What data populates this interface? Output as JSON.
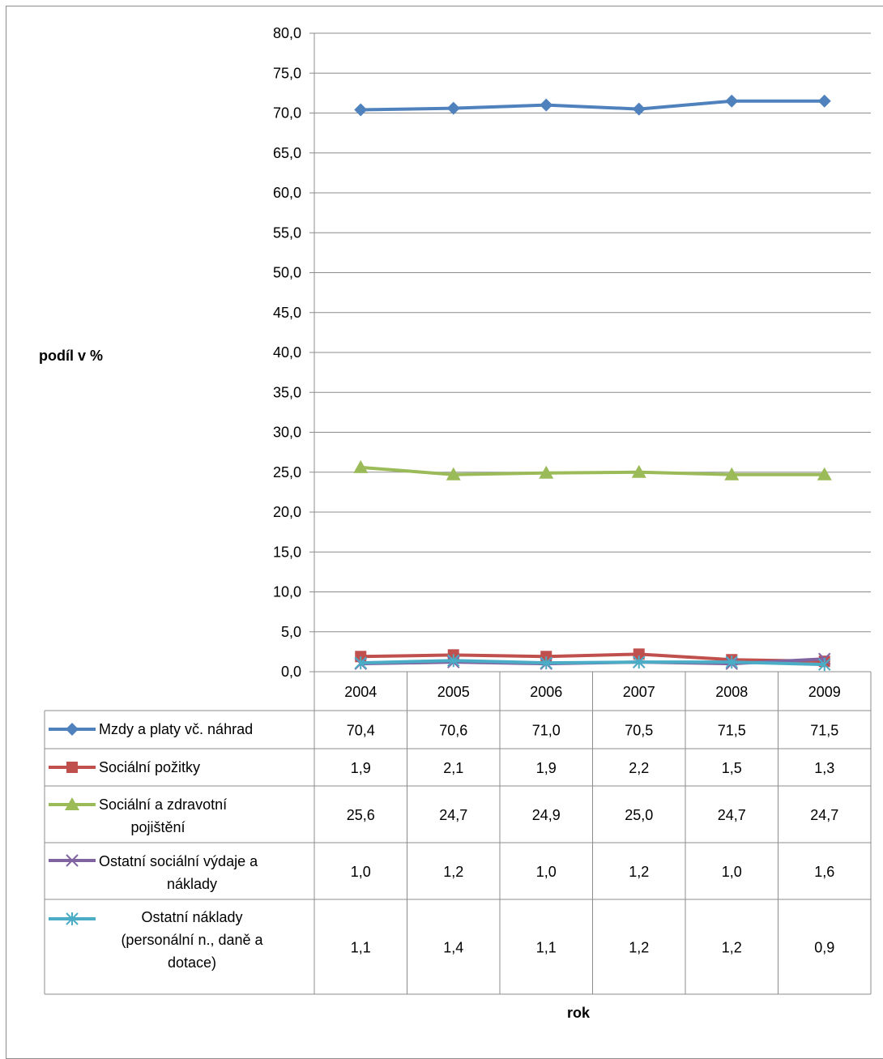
{
  "chart_data": {
    "type": "line",
    "categories": [
      "2004",
      "2005",
      "2006",
      "2007",
      "2008",
      "2009"
    ],
    "ylabel": "podíl v %",
    "xlabel": "rok",
    "ylim": [
      0,
      80
    ],
    "ytick_step": 5,
    "yticks": [
      "0,0",
      "5,0",
      "10,0",
      "15,0",
      "20,0",
      "25,0",
      "30,0",
      "35,0",
      "40,0",
      "45,0",
      "50,0",
      "55,0",
      "60,0",
      "65,0",
      "70,0",
      "75,0",
      "80,0"
    ],
    "grid": true,
    "legend": "data-table",
    "series": [
      {
        "name": "Mzdy a platy vč. náhrad",
        "values": [
          70.4,
          70.6,
          71.0,
          70.5,
          71.5,
          71.5
        ],
        "labels": [
          "70,4",
          "70,6",
          "71,0",
          "70,5",
          "71,5",
          "71,5"
        ],
        "color": "#4f81bd",
        "marker": "diamond"
      },
      {
        "name": "Sociální požitky",
        "values": [
          1.9,
          2.1,
          1.9,
          2.2,
          1.5,
          1.3
        ],
        "labels": [
          "1,9",
          "2,1",
          "1,9",
          "2,2",
          "1,5",
          "1,3"
        ],
        "color": "#c0504d",
        "marker": "square"
      },
      {
        "name": "Sociální a zdravotní pojištění",
        "values": [
          25.6,
          24.7,
          24.9,
          25.0,
          24.7,
          24.7
        ],
        "labels": [
          "25,6",
          "24,7",
          "24,9",
          "25,0",
          "24,7",
          "24,7"
        ],
        "color": "#9bbb59",
        "marker": "triangle"
      },
      {
        "name": "Ostatní sociální výdaje a náklady",
        "values": [
          1.0,
          1.2,
          1.0,
          1.2,
          1.0,
          1.6
        ],
        "labels": [
          "1,0",
          "1,2",
          "1,0",
          "1,2",
          "1,0",
          "1,6"
        ],
        "color": "#8064a2",
        "marker": "x"
      },
      {
        "name": "Ostatní náklady (personální n., daně a dotace)",
        "values": [
          1.1,
          1.4,
          1.1,
          1.2,
          1.2,
          0.9
        ],
        "labels": [
          "1,1",
          "1,4",
          "1,1",
          "1,2",
          "1,2",
          "0,9"
        ],
        "color": "#4bacc6",
        "marker": "star"
      }
    ]
  }
}
